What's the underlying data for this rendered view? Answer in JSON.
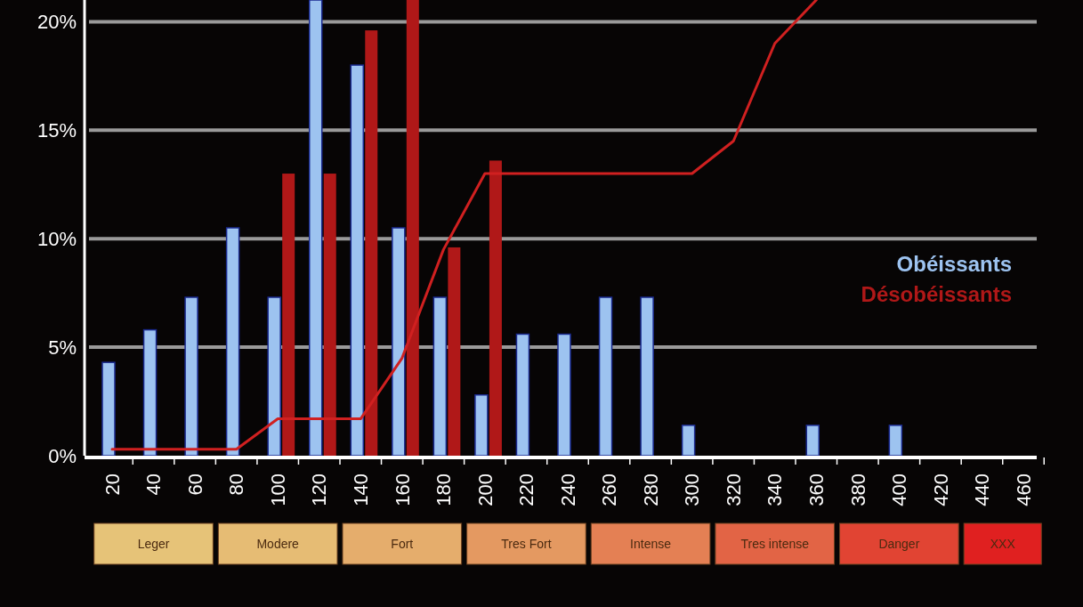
{
  "chart_data": {
    "type": "bar",
    "categories": [
      "20",
      "40",
      "60",
      "80",
      "100",
      "120",
      "140",
      "160",
      "180",
      "200",
      "220",
      "240",
      "260",
      "280",
      "300",
      "320",
      "340",
      "360",
      "380",
      "400",
      "420",
      "440",
      "460"
    ],
    "series": [
      {
        "name": "Obéissants",
        "color": "#9dc3f0",
        "values": [
          4.3,
          5.8,
          7.3,
          10.5,
          7.3,
          21,
          18,
          10.5,
          7.3,
          2.8,
          5.6,
          5.6,
          7.3,
          7.3,
          1.4,
          0,
          0,
          1.4,
          0,
          1.4,
          0,
          0,
          0
        ]
      },
      {
        "name": "Désobéissants",
        "color": "#b01818",
        "values": [
          0,
          0,
          0,
          0,
          13,
          13,
          19.6,
          21,
          9.6,
          13.6,
          0,
          0,
          0,
          0,
          0,
          0,
          0,
          0,
          0,
          0,
          0,
          0,
          0
        ]
      },
      {
        "type": "line",
        "color": "#d02020",
        "values": [
          0.3,
          0.3,
          0.3,
          0.3,
          1.7,
          1.7,
          1.7,
          4.5,
          9.5,
          13,
          13,
          13,
          13,
          13,
          13,
          14.5,
          19,
          21,
          null,
          null,
          null,
          null,
          null
        ]
      }
    ],
    "ylim": [
      0,
      21
    ],
    "yticks": [
      {
        "value": 0,
        "label": "0%"
      },
      {
        "value": 5,
        "label": "5%"
      },
      {
        "value": 10,
        "label": "10%"
      },
      {
        "value": 15,
        "label": "15%"
      },
      {
        "value": 20,
        "label": "20%"
      }
    ],
    "grid": "y",
    "legend": "right",
    "annotations": [
      "Leger",
      "Modere",
      "Fort",
      "Tres Fort",
      "Intense",
      "Tres intense",
      "Danger",
      "XXX"
    ]
  }
}
